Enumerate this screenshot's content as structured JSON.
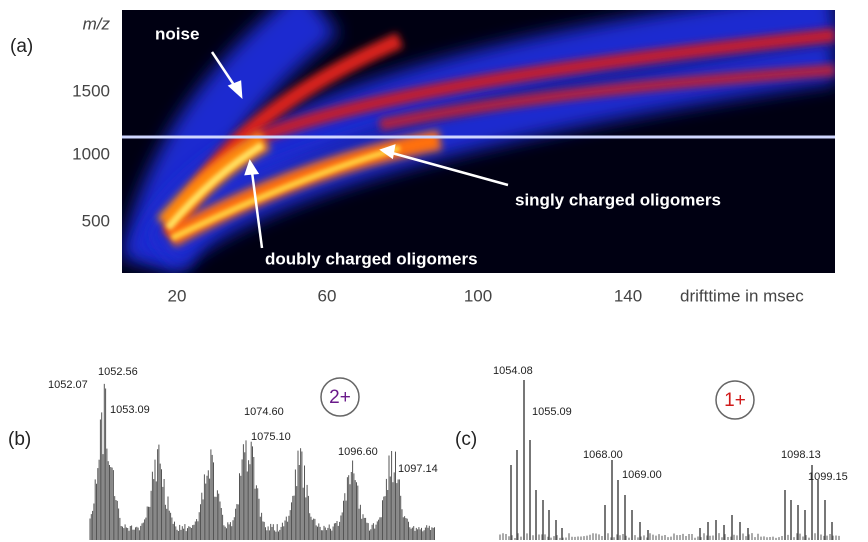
{
  "panels": [
    {
      "label": "(a)",
      "y_axis_label": "m/z",
      "y_ticks": [
        "1500",
        "1000",
        "500"
      ],
      "x_ticks": [
        "20",
        "60",
        "100",
        "140"
      ],
      "x_axis_label": "drifttime in msec",
      "annotations": [
        "noise",
        "singly charged oligomers",
        "doubly charged oligomers"
      ]
    },
    {
      "label": "(b)",
      "charge": "2+",
      "peak_labels": [
        "1052.07",
        "1052.56",
        "1053.09",
        "1074.60",
        "1075.10",
        "1096.60",
        "1097.14"
      ]
    },
    {
      "label": "(c)",
      "charge": "1+",
      "peak_labels": [
        "1054.08",
        "1055.09",
        "1068.00",
        "1069.00",
        "1098.13",
        "1099.15"
      ]
    }
  ]
}
